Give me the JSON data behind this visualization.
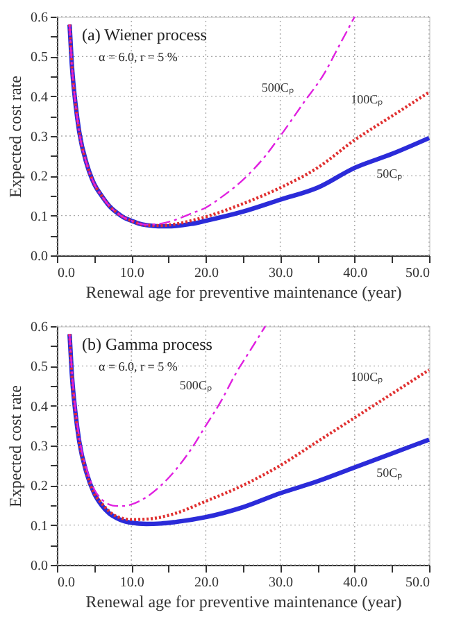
{
  "chart_data": [
    {
      "type": "line",
      "xlabel": "Renewal age for preventive maintenance (year)",
      "ylabel": "Expected cost rate",
      "annotations": [
        "(a)  Wiener process",
        "α = 6.0,  r = 5 %"
      ],
      "xlim": [
        0,
        50
      ],
      "ylim": [
        0,
        0.6
      ],
      "xticks": [
        {
          "value": 0,
          "label": "0.0"
        },
        {
          "value": 5,
          "label": null
        },
        {
          "value": 10,
          "label": "10.0"
        },
        {
          "value": 15,
          "label": null
        },
        {
          "value": 20,
          "label": "20.0"
        },
        {
          "value": 25,
          "label": null
        },
        {
          "value": 30,
          "label": "30.0"
        },
        {
          "value": 35,
          "label": null
        },
        {
          "value": 40,
          "label": "40.0"
        },
        {
          "value": 45,
          "label": null
        },
        {
          "value": 50,
          "label": "50.0"
        }
      ],
      "yticks": [
        {
          "value": 0,
          "label": "0.0"
        },
        {
          "value": 0.05,
          "label": null
        },
        {
          "value": 0.1,
          "label": "0.1"
        },
        {
          "value": 0.15,
          "label": null
        },
        {
          "value": 0.2,
          "label": "0.2"
        },
        {
          "value": 0.25,
          "label": null
        },
        {
          "value": 0.3,
          "label": "0.3"
        },
        {
          "value": 0.35,
          "label": null
        },
        {
          "value": 0.4,
          "label": "0.4"
        },
        {
          "value": 0.45,
          "label": null
        },
        {
          "value": 0.5,
          "label": "0.5"
        },
        {
          "value": 0.55,
          "label": null
        },
        {
          "value": 0.6,
          "label": "0.6"
        }
      ],
      "grid": true,
      "marker": "none",
      "series": [
        {
          "name": "50Cₚ",
          "color": "#2b2bd9",
          "line_style": "solid",
          "x": [
            1.7,
            2,
            2.5,
            3,
            4,
            5,
            6,
            7,
            8,
            9,
            10,
            11,
            12,
            13,
            14,
            15,
            16,
            18,
            20,
            25,
            30,
            35,
            40,
            45,
            50
          ],
          "values": [
            0.58,
            0.48,
            0.38,
            0.31,
            0.23,
            0.18,
            0.15,
            0.125,
            0.108,
            0.095,
            0.087,
            0.08,
            0.076,
            0.074,
            0.073,
            0.073,
            0.074,
            0.079,
            0.087,
            0.11,
            0.14,
            0.17,
            0.22,
            0.255,
            0.295
          ]
        },
        {
          "name": "100Cₚ",
          "color": "#e03030",
          "line_style": "dotted",
          "x": [
            1.7,
            2,
            2.5,
            3,
            4,
            5,
            6,
            7,
            8,
            9,
            10,
            11,
            12,
            14,
            16,
            18,
            20,
            25,
            30,
            35,
            40,
            45,
            50
          ],
          "values": [
            0.58,
            0.48,
            0.38,
            0.31,
            0.23,
            0.18,
            0.15,
            0.125,
            0.108,
            0.095,
            0.087,
            0.08,
            0.076,
            0.075,
            0.079,
            0.087,
            0.097,
            0.13,
            0.17,
            0.22,
            0.29,
            0.35,
            0.41
          ]
        },
        {
          "name": "500Cₚ",
          "color": "#e020e0",
          "line_style": "dashed",
          "x": [
            1.7,
            2,
            2.5,
            3,
            4,
            5,
            6,
            7,
            8,
            9,
            10,
            11,
            12,
            14,
            16,
            18,
            20,
            22,
            25,
            28,
            30,
            33,
            36,
            38,
            40
          ],
          "values": [
            0.58,
            0.48,
            0.38,
            0.31,
            0.23,
            0.18,
            0.15,
            0.125,
            0.108,
            0.095,
            0.087,
            0.08,
            0.077,
            0.08,
            0.09,
            0.105,
            0.12,
            0.145,
            0.19,
            0.25,
            0.3,
            0.38,
            0.46,
            0.53,
            0.6
          ]
        }
      ]
    },
    {
      "type": "line",
      "xlabel": "Renewal age for preventive maintenance (year)",
      "ylabel": "Expected cost rate",
      "annotations": [
        "(b)  Gamma process",
        "α = 6.0,  r = 5 %"
      ],
      "xlim": [
        0,
        50
      ],
      "ylim": [
        0,
        0.6
      ],
      "xticks": [
        {
          "value": 0,
          "label": "0.0"
        },
        {
          "value": 5,
          "label": null
        },
        {
          "value": 10,
          "label": "10.0"
        },
        {
          "value": 15,
          "label": null
        },
        {
          "value": 20,
          "label": "20.0"
        },
        {
          "value": 25,
          "label": null
        },
        {
          "value": 30,
          "label": "30.0"
        },
        {
          "value": 35,
          "label": null
        },
        {
          "value": 40,
          "label": "40.0"
        },
        {
          "value": 45,
          "label": null
        },
        {
          "value": 50,
          "label": "50.0"
        }
      ],
      "yticks": [
        {
          "value": 0,
          "label": "0.0"
        },
        {
          "value": 0.05,
          "label": null
        },
        {
          "value": 0.1,
          "label": "0.1"
        },
        {
          "value": 0.15,
          "label": null
        },
        {
          "value": 0.2,
          "label": "0.2"
        },
        {
          "value": 0.25,
          "label": null
        },
        {
          "value": 0.3,
          "label": "0.3"
        },
        {
          "value": 0.35,
          "label": null
        },
        {
          "value": 0.4,
          "label": "0.4"
        },
        {
          "value": 0.45,
          "label": null
        },
        {
          "value": 0.5,
          "label": "0.5"
        },
        {
          "value": 0.55,
          "label": null
        },
        {
          "value": 0.6,
          "label": "0.6"
        }
      ],
      "grid": true,
      "marker": "none",
      "series": [
        {
          "name": "50Cₚ",
          "color": "#2b2bd9",
          "line_style": "solid",
          "x": [
            1.7,
            2,
            2.5,
            3,
            4,
            5,
            6,
            7,
            8,
            9,
            10,
            12,
            14,
            16,
            20,
            25,
            30,
            35,
            40,
            45,
            50
          ],
          "values": [
            0.58,
            0.48,
            0.38,
            0.31,
            0.23,
            0.18,
            0.15,
            0.13,
            0.118,
            0.11,
            0.106,
            0.103,
            0.104,
            0.108,
            0.12,
            0.145,
            0.18,
            0.21,
            0.245,
            0.28,
            0.315
          ]
        },
        {
          "name": "100Cₚ",
          "color": "#e03030",
          "line_style": "dotted",
          "x": [
            1.7,
            2,
            2.5,
            3,
            4,
            5,
            6,
            7,
            8,
            10,
            12,
            14,
            16,
            20,
            25,
            30,
            35,
            40,
            45,
            50
          ],
          "values": [
            0.58,
            0.48,
            0.38,
            0.31,
            0.23,
            0.18,
            0.155,
            0.135,
            0.122,
            0.114,
            0.115,
            0.12,
            0.13,
            0.16,
            0.2,
            0.25,
            0.31,
            0.37,
            0.43,
            0.49
          ]
        },
        {
          "name": "500Cₚ",
          "color": "#e020e0",
          "line_style": "dashed",
          "x": [
            1.7,
            2,
            2.5,
            3,
            4,
            5,
            6,
            7,
            8,
            9,
            10,
            12,
            14,
            16,
            18,
            20,
            22,
            24,
            26,
            28
          ],
          "values": [
            0.58,
            0.49,
            0.39,
            0.32,
            0.24,
            0.19,
            0.165,
            0.152,
            0.148,
            0.148,
            0.152,
            0.17,
            0.2,
            0.24,
            0.29,
            0.35,
            0.41,
            0.48,
            0.54,
            0.6
          ]
        }
      ]
    }
  ]
}
